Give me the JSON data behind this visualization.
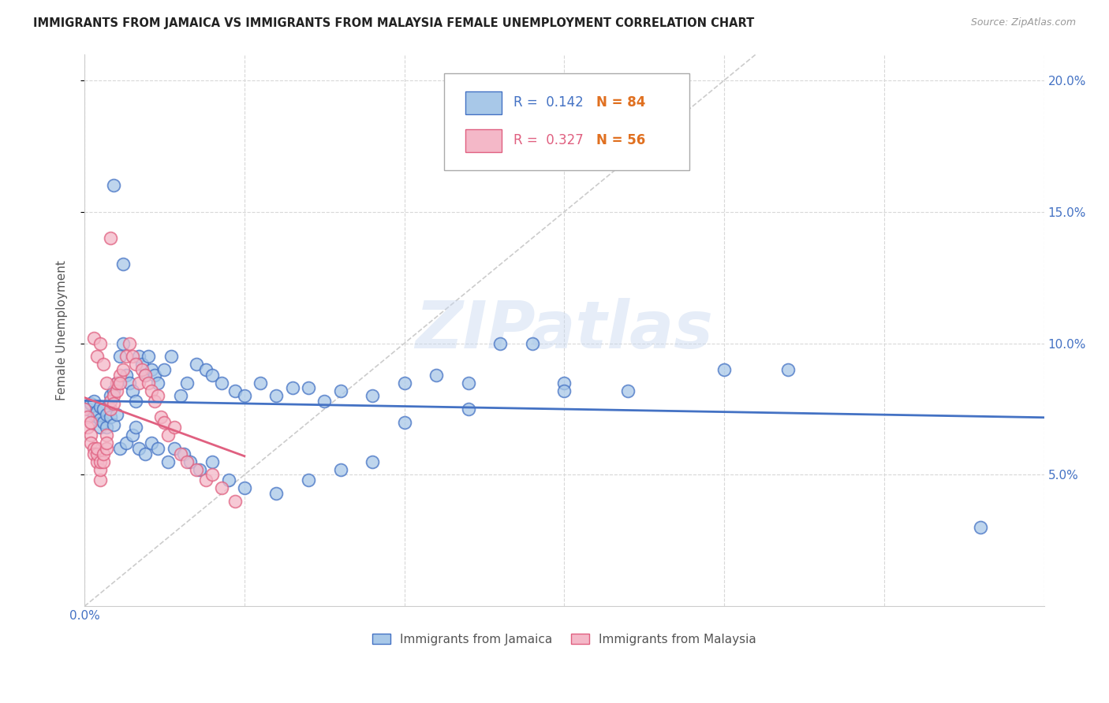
{
  "title": "IMMIGRANTS FROM JAMAICA VS IMMIGRANTS FROM MALAYSIA FEMALE UNEMPLOYMENT CORRELATION CHART",
  "source": "Source: ZipAtlas.com",
  "ylabel": "Female Unemployment",
  "xlim": [
    0.0,
    0.3
  ],
  "ylim": [
    0.0,
    0.21
  ],
  "watermark": "ZIPatlas",
  "jamaica_color": "#a8c8e8",
  "malaysia_color": "#f4b8c8",
  "jamaica_edge_color": "#4472c4",
  "malaysia_edge_color": "#e06080",
  "jamaica_line_color": "#4472c4",
  "malaysia_line_color": "#e06080",
  "diag_line_color": "#cccccc",
  "R_jamaica": "0.142",
  "N_jamaica": "84",
  "R_malaysia": "0.327",
  "N_malaysia": "56",
  "legend_label_1": "Immigrants from Jamaica",
  "legend_label_2": "Immigrants from Malaysia",
  "jamaica_x": [
    0.001,
    0.002,
    0.003,
    0.003,
    0.004,
    0.004,
    0.005,
    0.005,
    0.005,
    0.006,
    0.006,
    0.007,
    0.007,
    0.008,
    0.008,
    0.009,
    0.009,
    0.01,
    0.01,
    0.011,
    0.012,
    0.013,
    0.014,
    0.015,
    0.016,
    0.017,
    0.018,
    0.019,
    0.02,
    0.021,
    0.022,
    0.023,
    0.025,
    0.027,
    0.03,
    0.032,
    0.035,
    0.038,
    0.04,
    0.043,
    0.047,
    0.05,
    0.055,
    0.06,
    0.065,
    0.07,
    0.075,
    0.08,
    0.09,
    0.1,
    0.11,
    0.12,
    0.13,
    0.14,
    0.15,
    0.17,
    0.2,
    0.22,
    0.28,
    0.011,
    0.013,
    0.015,
    0.017,
    0.019,
    0.021,
    0.023,
    0.026,
    0.028,
    0.031,
    0.033,
    0.036,
    0.04,
    0.045,
    0.05,
    0.06,
    0.07,
    0.08,
    0.09,
    0.1,
    0.12,
    0.15,
    0.009,
    0.012,
    0.016
  ],
  "jamaica_y": [
    0.075,
    0.077,
    0.078,
    0.073,
    0.072,
    0.074,
    0.071,
    0.068,
    0.076,
    0.07,
    0.075,
    0.068,
    0.073,
    0.08,
    0.072,
    0.082,
    0.069,
    0.085,
    0.073,
    0.095,
    0.1,
    0.088,
    0.085,
    0.082,
    0.078,
    0.095,
    0.092,
    0.088,
    0.095,
    0.09,
    0.088,
    0.085,
    0.09,
    0.095,
    0.08,
    0.085,
    0.092,
    0.09,
    0.088,
    0.085,
    0.082,
    0.08,
    0.085,
    0.08,
    0.083,
    0.083,
    0.078,
    0.082,
    0.08,
    0.085,
    0.088,
    0.085,
    0.1,
    0.1,
    0.085,
    0.082,
    0.09,
    0.09,
    0.03,
    0.06,
    0.062,
    0.065,
    0.06,
    0.058,
    0.062,
    0.06,
    0.055,
    0.06,
    0.058,
    0.055,
    0.052,
    0.055,
    0.048,
    0.045,
    0.043,
    0.048,
    0.052,
    0.055,
    0.07,
    0.075,
    0.082,
    0.16,
    0.13,
    0.068
  ],
  "malaysia_x": [
    0.0,
    0.001,
    0.001,
    0.002,
    0.002,
    0.002,
    0.003,
    0.003,
    0.004,
    0.004,
    0.004,
    0.005,
    0.005,
    0.005,
    0.006,
    0.006,
    0.007,
    0.007,
    0.007,
    0.008,
    0.008,
    0.009,
    0.009,
    0.01,
    0.01,
    0.011,
    0.011,
    0.012,
    0.013,
    0.014,
    0.015,
    0.016,
    0.017,
    0.018,
    0.019,
    0.02,
    0.021,
    0.022,
    0.023,
    0.024,
    0.025,
    0.026,
    0.028,
    0.03,
    0.032,
    0.035,
    0.038,
    0.04,
    0.043,
    0.047,
    0.003,
    0.004,
    0.005,
    0.006,
    0.007,
    0.008
  ],
  "malaysia_y": [
    0.075,
    0.072,
    0.068,
    0.065,
    0.07,
    0.062,
    0.06,
    0.058,
    0.055,
    0.058,
    0.06,
    0.048,
    0.052,
    0.055,
    0.055,
    0.058,
    0.06,
    0.065,
    0.062,
    0.075,
    0.078,
    0.08,
    0.077,
    0.082,
    0.085,
    0.088,
    0.085,
    0.09,
    0.095,
    0.1,
    0.095,
    0.092,
    0.085,
    0.09,
    0.088,
    0.085,
    0.082,
    0.078,
    0.08,
    0.072,
    0.07,
    0.065,
    0.068,
    0.058,
    0.055,
    0.052,
    0.048,
    0.05,
    0.045,
    0.04,
    0.102,
    0.095,
    0.1,
    0.092,
    0.085,
    0.14
  ]
}
